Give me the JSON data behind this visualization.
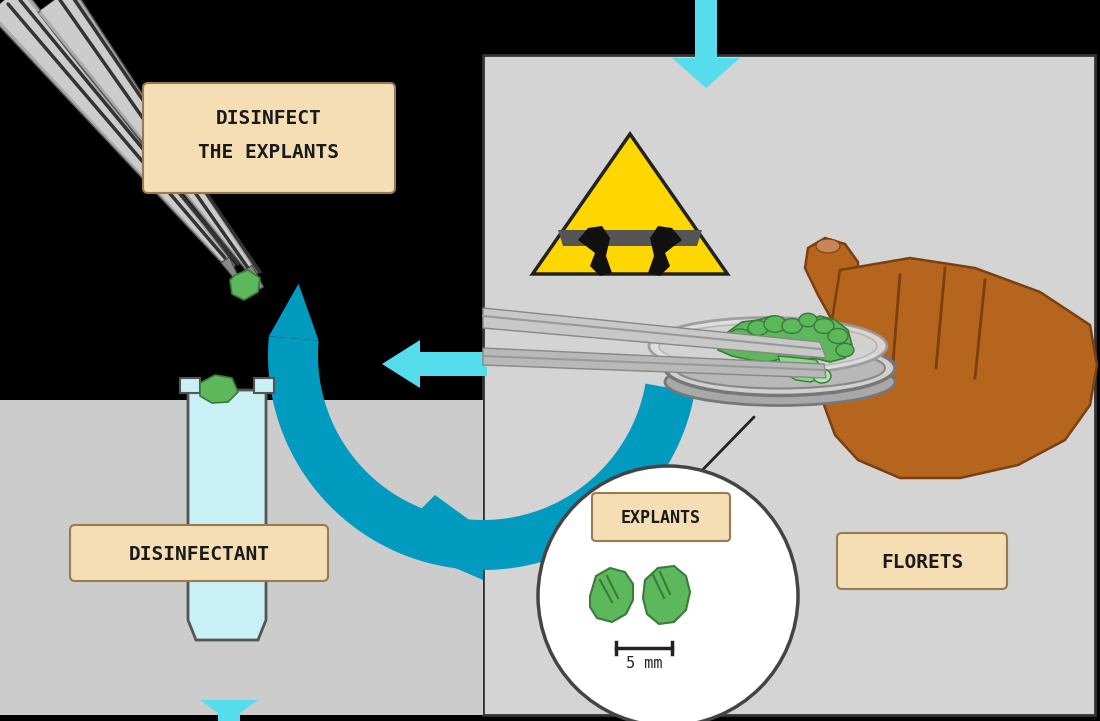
{
  "bg_color": "#000000",
  "right_panel_bg": "#d4d4d4",
  "left_bench_bg": "#cccccc",
  "label_bg": "#f5deb3",
  "label_border": "#8B7355",
  "green_color": "#5db85c",
  "green_dark": "#3a7a3a",
  "cyan_color": "#55ddee",
  "cyan_dark": "#009bbf",
  "hand_color": "#b5651d",
  "hand_dark": "#7a4010",
  "glass_color": "#c8f0f5",
  "warning_yellow": "#FFD700",
  "disinfect_text_1": "DISINFECT",
  "disinfect_text_2": "THE EXPLANTS",
  "disinfectant_text": "DISINFECTANT",
  "explants_text": "EXPLANTS",
  "florets_text": "FLORETS",
  "scale_text": "5 mm"
}
